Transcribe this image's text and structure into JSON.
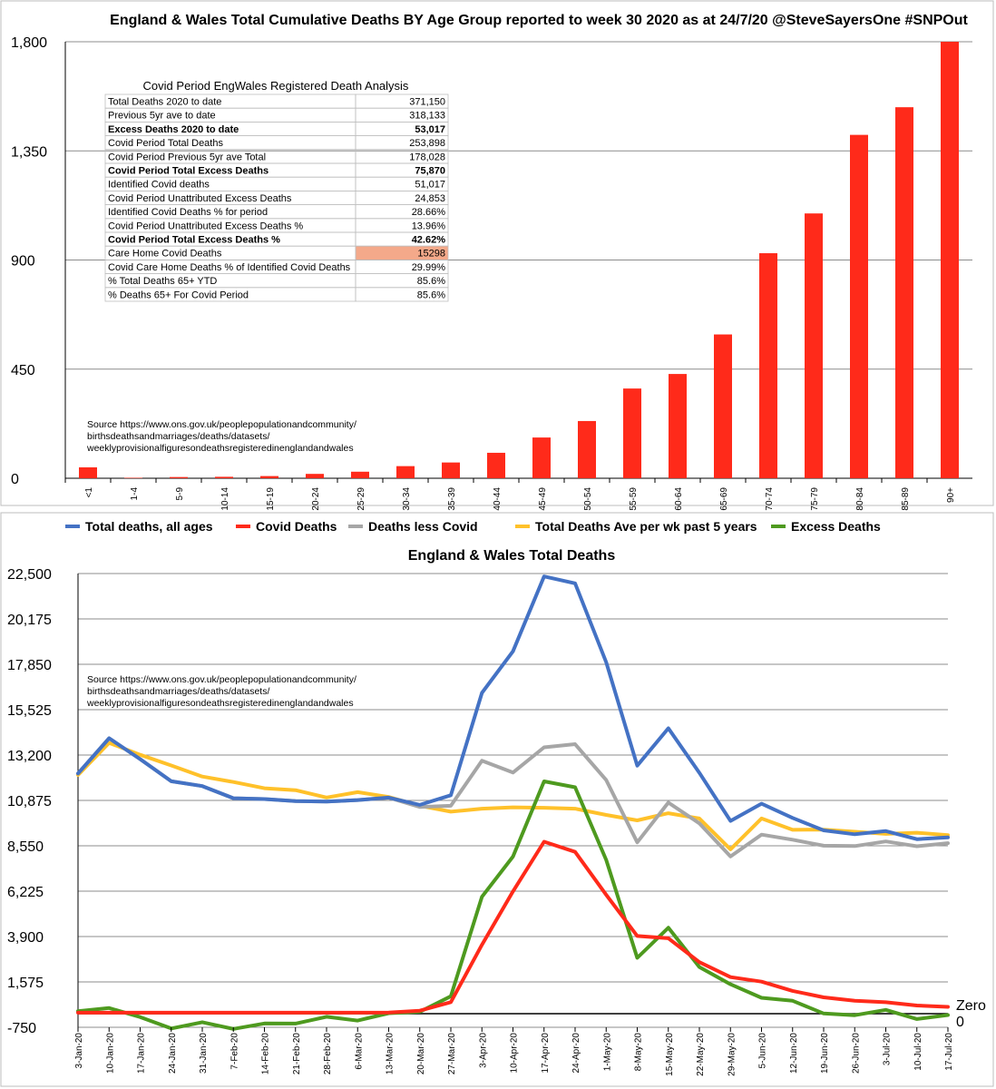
{
  "chart_data": [
    {
      "type": "bar",
      "title": "England & Wales Total Cumulative Deaths BY Age Group reported to week 30 2020 as at 24/7/20 @SteveSayersOne #SNPOut",
      "categories": [
        "<1",
        "1-4",
        "5-9",
        "10-14",
        "15-19",
        "20-24",
        "25-29",
        "30-34",
        "35-39",
        "40-44",
        "45-49",
        "50-54",
        "55-59",
        "60-64",
        "65-69",
        "70-74",
        "75-79",
        "80-84",
        "85-89",
        "90+"
      ],
      "values": [
        45,
        2,
        5,
        6,
        9,
        18,
        27,
        50,
        65,
        105,
        168,
        236,
        370,
        430,
        593,
        928,
        1092,
        1416,
        1530,
        1800
      ],
      "ylim": [
        0,
        1800
      ],
      "yticks": [
        "0",
        "450",
        "900",
        "1,350",
        "1,800"
      ],
      "color": "#ff2a1a",
      "source": [
        "Source https://www.ons.gov.uk/peoplepopulationandcommunity/",
        "birthsdeathsandmarriages/deaths/datasets/",
        "weeklyprovisionalfiguresondeathsregisteredinenglandandwales"
      ],
      "table": {
        "title": "Covid Period EngWales Registered Death Analysis",
        "rows": [
          {
            "label": "Total Deaths 2020 to date",
            "value": "371,150",
            "bold": false,
            "highlight": false
          },
          {
            "label": "Previous 5yr ave to date",
            "value": "318,133",
            "bold": false,
            "highlight": false
          },
          {
            "label": "Excess Deaths 2020 to date",
            "value": "53,017",
            "bold": true,
            "highlight": false
          },
          {
            "label": "Covid Period Total Deaths",
            "value": "253,898",
            "bold": false,
            "highlight": false
          },
          {
            "label": "Covid Period Previous 5yr ave Total",
            "value": "178,028",
            "bold": false,
            "highlight": false
          },
          {
            "label": "Covid Period Total Excess Deaths",
            "value": "75,870",
            "bold": true,
            "highlight": false
          },
          {
            "label": "Identified Covid deaths",
            "value": "51,017",
            "bold": false,
            "highlight": false
          },
          {
            "label": "Covid Period Unattributed Excess Deaths",
            "value": "24,853",
            "bold": false,
            "highlight": false
          },
          {
            "label": "Identified Covid Deaths % for period",
            "value": "28.66%",
            "bold": false,
            "highlight": false
          },
          {
            "label": "Covid Period Unattributed Excess Deaths %",
            "value": "13.96%",
            "bold": false,
            "highlight": false
          },
          {
            "label": "Covid Period Total Excess Deaths  %",
            "value": "42.62%",
            "bold": true,
            "highlight": false
          },
          {
            "label": "Care Home Covid Deaths",
            "value": "15298",
            "bold": false,
            "highlight": true
          },
          {
            "label": "Covid Care Home Deaths  % of Identified Covid Deaths",
            "value": "29.99%",
            "bold": false,
            "highlight": false
          },
          {
            "label": "% Total Deaths 65+ YTD",
            "value": "85.6%",
            "bold": false,
            "highlight": false
          },
          {
            "label": "% Deaths 65+ For Covid Period",
            "value": "85.6%",
            "bold": false,
            "highlight": false
          }
        ],
        "highlight_color": "#f4a98a"
      }
    },
    {
      "type": "line",
      "title": "England & Wales Total Deaths",
      "x": [
        "3-Jan-20",
        "10-Jan-20",
        "17-Jan-20",
        "24-Jan-20",
        "31-Jan-20",
        "7-Feb-20",
        "14-Feb-20",
        "21-Feb-20",
        "28-Feb-20",
        "6-Mar-20",
        "13-Mar-20",
        "20-Mar-20",
        "27-Mar-20",
        "3-Apr-20",
        "10-Apr-20",
        "17-Apr-20",
        "24-Apr-20",
        "1-May-20",
        "8-May-20",
        "15-May-20",
        "22-May-20",
        "29-May-20",
        "5-Jun-20",
        "12-Jun-20",
        "19-Jun-20",
        "26-Jun-20",
        "3-Jul-20",
        "10-Jul-20",
        "17-Jul-20"
      ],
      "ylim": [
        -750,
        22500
      ],
      "yticks": [
        "-750",
        "1,575",
        "3,900",
        "6,225",
        "8,550",
        "10,875",
        "13,200",
        "15,525",
        "17,850",
        "20,175",
        "22,500"
      ],
      "legend_position": "top",
      "series": [
        {
          "name": "Total deaths, all ages",
          "color": "#4472c4",
          "values": [
            12254,
            14058,
            12990,
            11856,
            11612,
            10986,
            10944,
            10841,
            10816,
            10895,
            11019,
            10645,
            11141,
            16387,
            18516,
            22351,
            21997,
            17953,
            12657,
            14573,
            12288,
            9824,
            10709,
            9976,
            9339,
            9140,
            9305,
            8891,
            8979
          ]
        },
        {
          "name": "Covid  Deaths",
          "color": "#ff2a1a",
          "values": [
            0,
            0,
            0,
            0,
            0,
            0,
            0,
            0,
            0,
            0,
            5,
            103,
            539,
            3475,
            6213,
            8758,
            8237,
            6035,
            3930,
            3810,
            2589,
            1822,
            1588,
            1114,
            783,
            606,
            532,
            366,
            295
          ]
        },
        {
          "name": "Deaths less Covid",
          "color": "#a6a6a6",
          "values": [
            12254,
            14058,
            12990,
            11856,
            11612,
            10986,
            10944,
            10841,
            10816,
            10895,
            11014,
            10542,
            10602,
            12912,
            12303,
            13593,
            13760,
            11918,
            8727,
            10763,
            9699,
            8002,
            9121,
            8862,
            8556,
            8534,
            8773,
            8525,
            8684
          ]
        },
        {
          "name": "Total Deaths Ave per wk past 5 years",
          "color": "#ffc12a",
          "values": [
            12175,
            13822,
            13216,
            12665,
            12100,
            11820,
            11500,
            11400,
            11025,
            11300,
            11050,
            10600,
            10300,
            10450,
            10520,
            10500,
            10450,
            10130,
            9850,
            10220,
            9950,
            8370,
            9950,
            9370,
            9380,
            9270,
            9160,
            9220,
            9100
          ]
        },
        {
          "name": "Excess Deaths",
          "color": "#4e9a1f",
          "values": [
            79,
            236,
            -226,
            -809,
            -488,
            -834,
            -556,
            -559,
            -209,
            -405,
            -31,
            45,
            841,
            5937,
            7996,
            11851,
            11547,
            7823,
            2807,
            4353,
            2338,
            1454,
            759,
            606,
            -41,
            -130,
            145,
            -329,
            -121
          ]
        }
      ],
      "annotations": [
        "Zero",
        "0"
      ],
      "source": [
        "Source https://www.ons.gov.uk/peoplepopulationandcommunity/",
        "birthsdeathsandmarriages/deaths/datasets/",
        "weeklyprovisionalfiguresondeathsregisteredinenglandandwales"
      ]
    }
  ]
}
